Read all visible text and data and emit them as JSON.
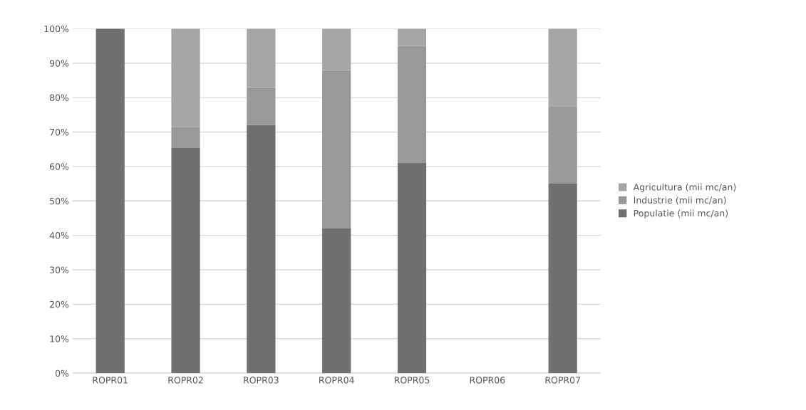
{
  "chart_data": {
    "type": "bar",
    "stacked": true,
    "categories": [
      "ROPR01",
      "ROPR02",
      "ROPR03",
      "ROPR04",
      "ROPR05",
      "ROPR06",
      "ROPR07"
    ],
    "series": [
      {
        "name": "Populatie (mii mc/an)",
        "color": "#707070",
        "values": [
          100,
          65.5,
          72,
          42,
          61,
          null,
          55
        ]
      },
      {
        "name": "Industrie (mii mc/an)",
        "color": "#999999",
        "values": [
          0,
          6,
          11,
          46,
          34,
          null,
          22.5
        ]
      },
      {
        "name": "Agricultura (mii mc/an)",
        "color": "#a6a6a6",
        "values": [
          0,
          28.5,
          17,
          12,
          5,
          null,
          22.5
        ]
      }
    ],
    "ylim": [
      0,
      100
    ],
    "yticks": [
      {
        "value": 0,
        "label": "0%"
      },
      {
        "value": 10,
        "label": "10%"
      },
      {
        "value": 20,
        "label": "20%"
      },
      {
        "value": 30,
        "label": "30%"
      },
      {
        "value": 40,
        "label": "40%"
      },
      {
        "value": 50,
        "label": "50%"
      },
      {
        "value": 60,
        "label": "60%"
      },
      {
        "value": 70,
        "label": "70%"
      },
      {
        "value": 80,
        "label": "80%"
      },
      {
        "value": 90,
        "label": "90%"
      },
      {
        "value": 100,
        "label": "100%"
      }
    ],
    "grid": "y",
    "legend": "right"
  }
}
